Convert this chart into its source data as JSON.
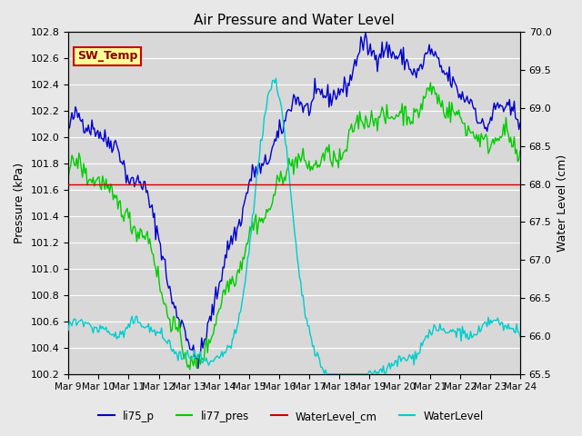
{
  "title": "Air Pressure and Water Level",
  "ylabel_left": "Pressure (kPa)",
  "ylabel_right": "Water Level (cm)",
  "ylim_left": [
    100.2,
    102.8
  ],
  "ylim_right": [
    65.5,
    70.0
  ],
  "yticks_left": [
    100.2,
    100.4,
    100.6,
    100.8,
    101.0,
    101.2,
    101.4,
    101.6,
    101.8,
    102.0,
    102.2,
    102.4,
    102.6,
    102.8
  ],
  "yticks_right": [
    65.5,
    66.0,
    66.5,
    67.0,
    67.5,
    68.0,
    68.5,
    69.0,
    69.5,
    70.0
  ],
  "xtick_labels": [
    "Mar 9",
    "Mar 10",
    "Mar 11",
    "Mar 12",
    "Mar 13",
    "Mar 14",
    "Mar 15",
    "Mar 16",
    "Mar 17",
    "Mar 18",
    "Mar 19",
    "Mar 20",
    "Mar 21",
    "Mar 22",
    "Mar 23",
    "Mar 24"
  ],
  "color_li75_p": "#0000cc",
  "color_li77_pres": "#00cc00",
  "color_waterlevel_cm": "#cc0000",
  "color_waterlevel": "#00cccc",
  "bg_color": "#e8e8e8",
  "plot_bg_color": "#d8d8d8",
  "annotation_text": "SW_Temp",
  "annotation_bg": "#ffff99",
  "annotation_border": "#cc0000",
  "legend_labels": [
    "li75_p",
    "li77_pres",
    "WaterLevel_cm",
    "WaterLevel"
  ],
  "n_days": 16,
  "n_per_day": 24
}
